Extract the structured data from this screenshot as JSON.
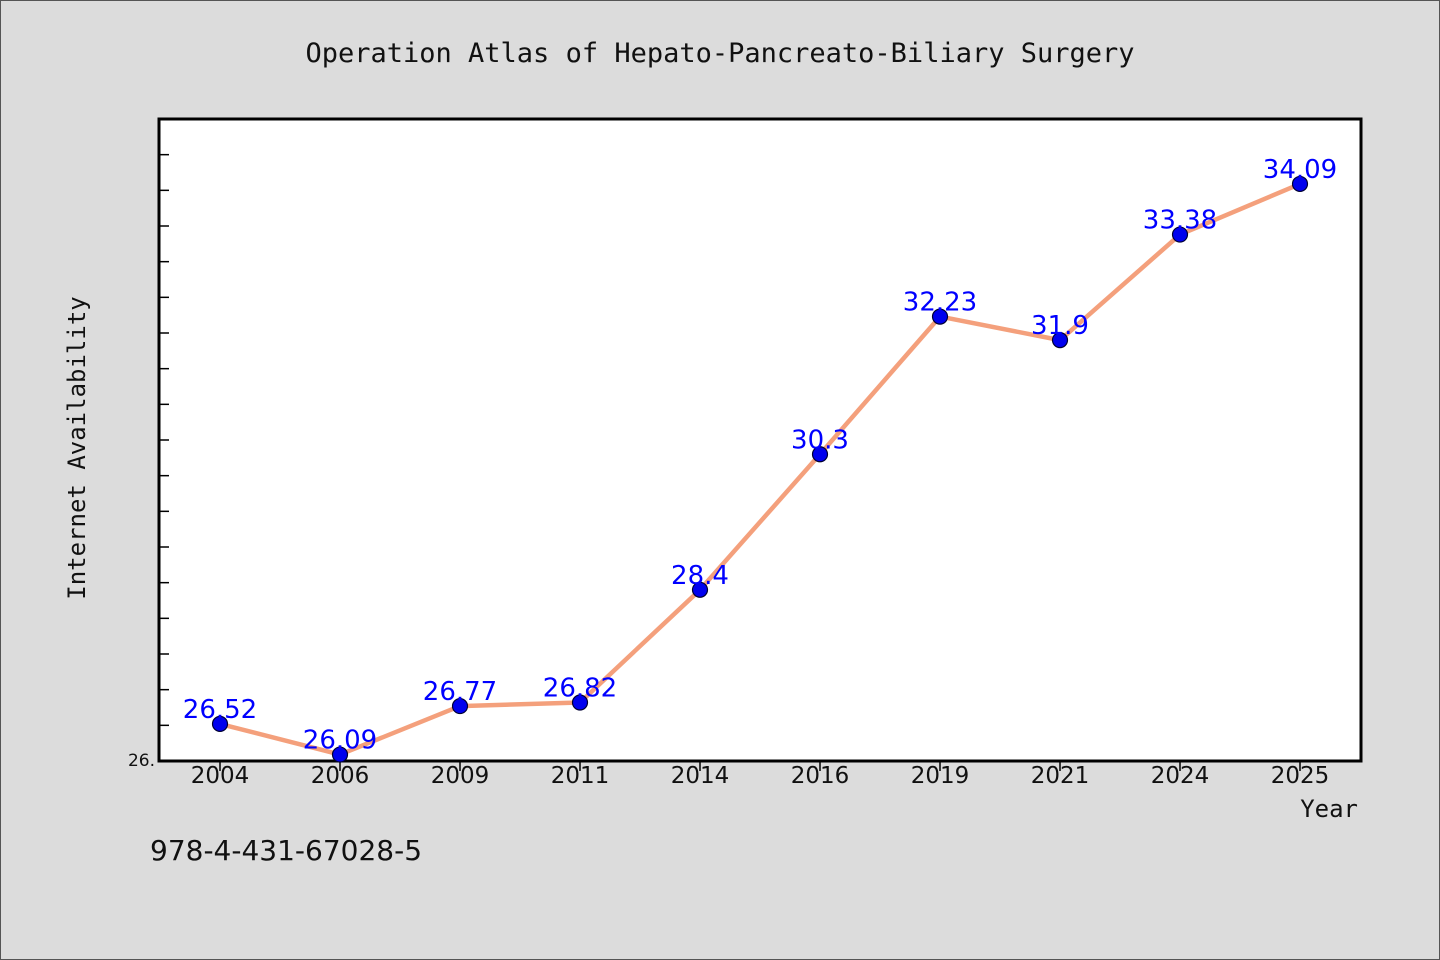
{
  "chart_data": {
    "type": "line",
    "title": "Operation Atlas of Hepato-Pancreato-Biliary Surgery",
    "xlabel": "Year",
    "ylabel": "Internet Availability",
    "categories": [
      "2004",
      "2006",
      "2009",
      "2011",
      "2014",
      "2016",
      "2019",
      "2021",
      "2024",
      "2025"
    ],
    "values": [
      26.52,
      26.09,
      26.77,
      26.82,
      28.4,
      30.3,
      32.23,
      31.9,
      33.38,
      34.09
    ],
    "data_labels": [
      "26.52",
      "26.09",
      "26.77",
      "26.82",
      "28.4",
      "30.3",
      "32.23",
      "31.9",
      "33.38",
      "34.09"
    ],
    "ylim": [
      26.0,
      35.0
    ],
    "y_tick_label": "26.",
    "grid": false,
    "colors": {
      "line": "#f4a07c",
      "marker": "#0000ee",
      "data_label": "#0000ff",
      "plot_background": "#ffffff",
      "page_background": "#dcdcdc"
    }
  },
  "footer": {
    "isbn": "978-4-431-67028-5"
  }
}
